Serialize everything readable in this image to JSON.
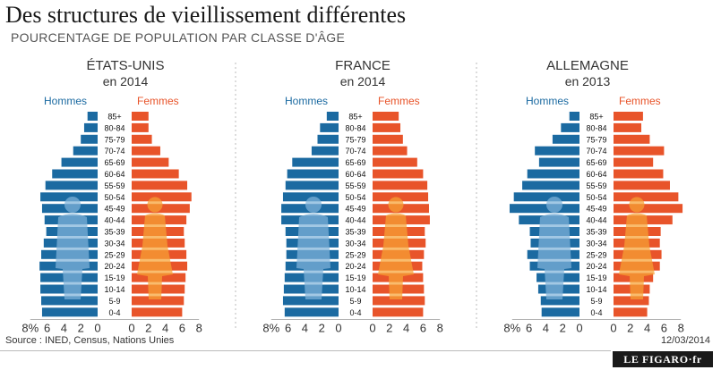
{
  "title": "Des structures de vieillissement différentes",
  "subtitle": "POURCENTAGE DE POPULATION PAR CLASSE D'ÂGE",
  "source": "Source : INED, Census, Nations Unies",
  "date": "12/03/2014",
  "logo": "LE FIGARO·fr",
  "colors": {
    "men": "#1b6aa1",
    "women": "#e8542a",
    "silhouette_men": "#7fb3da",
    "silhouette_women": "#f7a234"
  },
  "chart_data": [
    {
      "type": "bar",
      "title": "ÉTATS-UNIS",
      "subtitle": "en 2014",
      "legend": {
        "men": "Hommes",
        "women": "Femmes"
      },
      "categories": [
        "85+",
        "80-84",
        "75-79",
        "70-74",
        "65-69",
        "60-64",
        "55-59",
        "50-54",
        "45-49",
        "40-44",
        "35-39",
        "30-34",
        "25-29",
        "20-24",
        "15-19",
        "10-14",
        "5-9",
        "0-4"
      ],
      "xlim": [
        -8,
        8
      ],
      "x_ticks": [
        "8%",
        "6",
        "4",
        "2",
        "0",
        "2",
        "4",
        "6",
        "8"
      ],
      "series": [
        {
          "name": "Hommes",
          "values": [
            1.2,
            1.6,
            2.0,
            2.9,
            4.3,
            5.4,
            6.2,
            6.8,
            6.6,
            6.3,
            6.1,
            6.4,
            6.7,
            6.9,
            6.8,
            6.8,
            6.7,
            6.6
          ]
        },
        {
          "name": "Femmes",
          "values": [
            2.0,
            2.0,
            2.4,
            3.4,
            4.4,
            5.6,
            6.6,
            7.1,
            6.9,
            6.5,
            6.2,
            6.3,
            6.5,
            6.6,
            6.4,
            6.3,
            6.2,
            6.0
          ]
        }
      ]
    },
    {
      "type": "bar",
      "title": "FRANCE",
      "subtitle": "en 2014",
      "legend": {
        "men": "Hommes",
        "women": "Femmes"
      },
      "categories": [
        "85+",
        "80-84",
        "75-79",
        "70-74",
        "65-69",
        "60-64",
        "55-59",
        "50-54",
        "45-49",
        "40-44",
        "35-39",
        "30-34",
        "25-29",
        "20-24",
        "15-19",
        "10-14",
        "5-9",
        "0-4"
      ],
      "xlim": [
        -8,
        8
      ],
      "x_ticks": [
        "8%",
        "6",
        "4",
        "2",
        "0",
        "2",
        "4",
        "6",
        "8"
      ],
      "series": [
        {
          "name": "Hommes",
          "values": [
            1.4,
            2.2,
            2.5,
            3.2,
            5.5,
            6.1,
            6.3,
            6.6,
            6.8,
            6.8,
            6.3,
            6.2,
            6.2,
            6.3,
            6.4,
            6.5,
            6.6,
            6.4
          ]
        },
        {
          "name": "Femmes",
          "values": [
            3.1,
            3.3,
            3.6,
            4.1,
            5.3,
            6.0,
            6.5,
            6.6,
            6.7,
            6.8,
            6.2,
            6.3,
            6.1,
            5.9,
            6.0,
            6.1,
            6.2,
            6.0
          ]
        }
      ]
    },
    {
      "type": "bar",
      "title": "ALLEMAGNE",
      "subtitle": "en 2013",
      "legend": {
        "men": "Hommes",
        "women": "Femmes"
      },
      "categories": [
        "85+",
        "80-84",
        "75-79",
        "70-74",
        "65-69",
        "60-64",
        "55-59",
        "50-54",
        "45-49",
        "40-44",
        "35-39",
        "30-34",
        "25-29",
        "20-24",
        "15-19",
        "10-14",
        "5-9",
        "0-4"
      ],
      "xlim": [
        -8,
        8
      ],
      "x_ticks": [
        "8%",
        "6",
        "4",
        "2",
        "0",
        "2",
        "4",
        "6",
        "8"
      ],
      "series": [
        {
          "name": "Hommes",
          "values": [
            1.2,
            2.2,
            3.2,
            5.3,
            4.8,
            6.2,
            6.8,
            7.8,
            8.3,
            7.2,
            5.9,
            5.8,
            6.2,
            5.9,
            5.1,
            4.9,
            4.6,
            4.5
          ]
        },
        {
          "name": "Femmes",
          "values": [
            3.5,
            3.3,
            4.3,
            6.0,
            4.7,
            5.9,
            6.7,
            7.7,
            8.2,
            7.0,
            5.6,
            5.5,
            5.7,
            5.5,
            4.7,
            4.3,
            4.2,
            4.0
          ]
        }
      ]
    }
  ]
}
